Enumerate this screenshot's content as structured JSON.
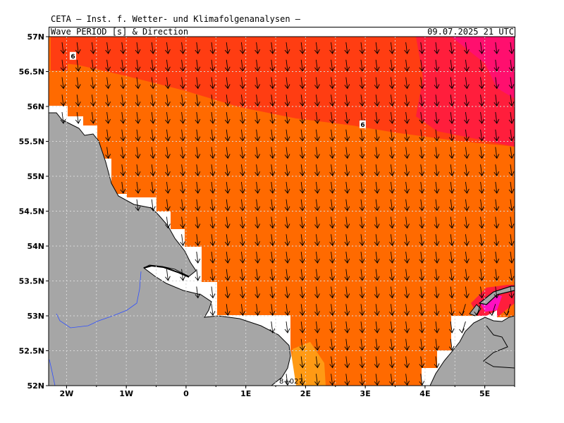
{
  "header": {
    "institution": "CETA — Inst. f. Wetter- und Klimafolgenanalysen —",
    "parameter": "Wave PERIOD [s] & Direction",
    "valid_time": "09.07.2025 21 UTC"
  },
  "axes": {
    "lat_labels": [
      "57N",
      "56.5N",
      "56N",
      "55.5N",
      "55N",
      "54.5N",
      "54N",
      "53.5N",
      "53N",
      "52.5N",
      "52N"
    ],
    "lon_labels": [
      "2W",
      "1W",
      "0",
      "1E",
      "2E",
      "3E",
      "4E",
      "5E"
    ]
  },
  "contour_labels": [
    {
      "text": "6",
      "lon": -1.9,
      "lat": 56.72
    },
    {
      "text": "6",
      "lon": 2.95,
      "lat": 55.74
    }
  ],
  "footer_label": "8+027",
  "colors": {
    "land": "#a6a6a6",
    "period_5": "#ff6a00",
    "period_6": "#ff3d12",
    "period_7": "#ff1e3c",
    "period_8": "#ff0f6e",
    "period_low": "#ff9a14",
    "coastline": "#000000",
    "river": "#3050ff"
  },
  "map_extent": {
    "lon_min": -2.3,
    "lon_max": 5.5,
    "lat_min": 52,
    "lat_max": 57
  },
  "wave_direction": "southward"
}
